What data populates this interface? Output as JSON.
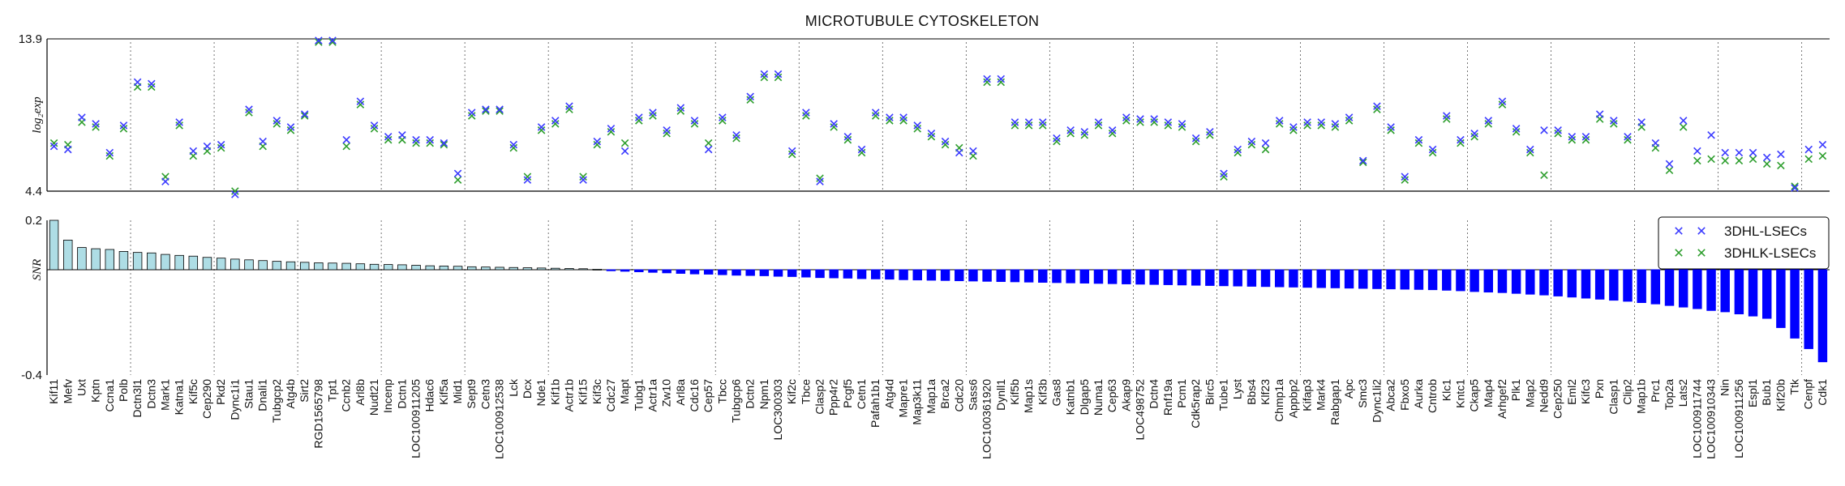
{
  "chart_data": {
    "title": "MICROTUBULE CYTOSKELETON",
    "top_panel": {
      "type": "scatter",
      "ylabel": "log₂exp",
      "ylim": [
        4.4,
        13.9
      ],
      "ytick_labels": [
        "13.9",
        "4.4"
      ],
      "grid": false
    },
    "bottom_panel": {
      "type": "bar",
      "ylabel": "SNR",
      "ylim": [
        -0.4,
        0.2
      ],
      "ytick_labels": [
        "0.2",
        "-0.4"
      ],
      "grid": false
    },
    "legend": {
      "placement": "top-right of bottom panel",
      "entries": [
        {
          "name": "3DHL-LSECs",
          "color": "#3b3bff",
          "marker": "x"
        },
        {
          "name": "3DHLK-LSECs",
          "color": "#2e9e2e",
          "marker": "x"
        }
      ]
    },
    "colors": {
      "positive_bar": "#aedde5",
      "negative_bar": "#0000ff",
      "bar_edge": "#000000",
      "hl_marker": "#3b3bff",
      "hlk_marker": "#2e9e2e"
    },
    "group_separator_every": 6,
    "categories": [
      "Kif11",
      "Mefv",
      "Uxt",
      "Kptn",
      "Ccna1",
      "Polb",
      "Dctn3l1",
      "Dctn3",
      "Mark1",
      "Katna1",
      "Kif5c",
      "Cep290",
      "Pkd2",
      "Dync1i1",
      "Stau1",
      "Dnali1",
      "Tubgcp2",
      "Atg4b",
      "Sirt2",
      "RGD1565798",
      "Tpt1",
      "Ccnb2",
      "Arl8b",
      "Nudt21",
      "Incenp",
      "Dctn1",
      "LOC100911205",
      "Hdac6",
      "Kif5a",
      "Mid1",
      "Sept9",
      "Cetn3",
      "LOC100912538",
      "Lck",
      "Dcx",
      "Nde1",
      "Kif1b",
      "Actr1b",
      "Kif15",
      "Kif3c",
      "Cdc27",
      "Mapt",
      "Tubg1",
      "Actr1a",
      "Zw10",
      "Arl8a",
      "Cdc16",
      "Cep57",
      "Tbcc",
      "Tubgcp6",
      "Dctn2",
      "Npm1",
      "LOC300303",
      "Kif2c",
      "Tbce",
      "Clasp2",
      "Ppp4r2",
      "Pcgf5",
      "Cetn1",
      "Pafah1b1",
      "Atg4d",
      "Mapre1",
      "Map3k11",
      "Map1a",
      "Brca2",
      "Cdc20",
      "Sass6",
      "LOC100361920",
      "Dynll1",
      "Kif5b",
      "Map1s",
      "Kif3b",
      "Gas8",
      "Katnb1",
      "Dlgap5",
      "Numa1",
      "Cep63",
      "Akap9",
      "LOC498752",
      "Dctn4",
      "Rnf19a",
      "Pcm1",
      "Cdk5rap2",
      "Birc5",
      "Tube1",
      "Lyst",
      "Bbs4",
      "Klf23",
      "Chmp1a",
      "Appbp2",
      "Kifap3",
      "Mark4",
      "Rabgap1",
      "Apc",
      "Smc3",
      "Dync1li2",
      "Abca2",
      "Fbxo5",
      "Aurka",
      "Cntrob",
      "Klc1",
      "Kntc1",
      "Ckap5",
      "Map4",
      "Arhgef2",
      "Plk1",
      "Map2",
      "Nedd9",
      "Cep250",
      "Eml2",
      "Kifc3",
      "Pxn",
      "Clasp1",
      "Clip2",
      "Map1b",
      "Prc1",
      "Top2a",
      "Lats2",
      "LOC100911744",
      "LOC100910343",
      "Nin",
      "LOC100911256",
      "Espl1",
      "Bub1",
      "Kif20b",
      "Ttk",
      "Cenpf",
      "Cdk1"
    ],
    "snr": [
      0.2,
      0.12,
      0.09,
      0.085,
      0.082,
      0.074,
      0.07,
      0.068,
      0.062,
      0.058,
      0.055,
      0.05,
      0.047,
      0.043,
      0.04,
      0.037,
      0.034,
      0.032,
      0.03,
      0.028,
      0.027,
      0.026,
      0.024,
      0.022,
      0.021,
      0.02,
      0.018,
      0.016,
      0.015,
      0.014,
      0.012,
      0.011,
      0.01,
      0.009,
      0.008,
      0.007,
      0.006,
      0.005,
      0.004,
      0.002,
      -0.004,
      -0.006,
      -0.008,
      -0.01,
      -0.012,
      -0.014,
      -0.016,
      -0.017,
      -0.019,
      -0.021,
      -0.022,
      -0.023,
      -0.025,
      -0.026,
      -0.028,
      -0.03,
      -0.031,
      -0.032,
      -0.034,
      -0.035,
      -0.036,
      -0.038,
      -0.039,
      -0.04,
      -0.041,
      -0.042,
      -0.043,
      -0.044,
      -0.045,
      -0.046,
      -0.047,
      -0.048,
      -0.049,
      -0.05,
      -0.051,
      -0.052,
      -0.053,
      -0.054,
      -0.055,
      -0.056,
      -0.057,
      -0.058,
      -0.059,
      -0.06,
      -0.061,
      -0.062,
      -0.063,
      -0.064,
      -0.065,
      -0.066,
      -0.067,
      -0.068,
      -0.069,
      -0.07,
      -0.071,
      -0.072,
      -0.073,
      -0.074,
      -0.075,
      -0.076,
      -0.078,
      -0.08,
      -0.083,
      -0.085,
      -0.087,
      -0.09,
      -0.093,
      -0.096,
      -0.1,
      -0.104,
      -0.108,
      -0.112,
      -0.116,
      -0.12,
      -0.125,
      -0.13,
      -0.136,
      -0.142,
      -0.148,
      -0.155,
      -0.16,
      -0.168,
      -0.176,
      -0.185,
      -0.22,
      -0.26,
      -0.3,
      -0.35
    ],
    "expr_3DHL_LSECs": [
      7.2,
      7.0,
      9.0,
      8.6,
      6.8,
      8.5,
      11.2,
      11.1,
      5.0,
      8.7,
      6.9,
      7.2,
      7.3,
      4.2,
      9.5,
      7.5,
      8.8,
      8.4,
      9.2,
      13.8,
      13.8,
      7.6,
      10.0,
      8.5,
      7.8,
      7.9,
      7.6,
      7.6,
      7.4,
      5.5,
      9.3,
      9.5,
      9.5,
      7.3,
      5.1,
      8.4,
      8.8,
      9.7,
      5.1,
      7.5,
      8.3,
      6.9,
      9.0,
      9.3,
      8.2,
      9.6,
      8.8,
      7.0,
      9.0,
      7.9,
      10.3,
      11.7,
      11.7,
      6.9,
      9.3,
      5.0,
      8.6,
      7.8,
      7.0,
      9.3,
      9.0,
      9.0,
      8.5,
      8.0,
      7.5,
      6.8,
      6.9,
      11.4,
      11.4,
      8.7,
      8.7,
      8.7,
      7.7,
      8.2,
      8.1,
      8.7,
      8.2,
      9.0,
      8.9,
      8.9,
      8.7,
      8.6,
      7.7,
      8.1,
      5.5,
      7.0,
      7.5,
      7.4,
      8.8,
      8.4,
      8.7,
      8.7,
      8.6,
      9.0,
      6.3,
      9.7,
      8.4,
      5.3,
      7.6,
      7.0,
      9.1,
      7.6,
      8.0,
      8.8,
      10.0,
      8.3,
      7.0,
      8.2,
      8.2,
      7.8,
      7.8,
      9.2,
      8.8,
      7.8,
      8.7,
      7.4,
      6.1,
      8.8,
      6.9,
      7.9,
      6.8,
      6.8,
      6.8,
      6.5,
      6.7,
      4.6,
      7.0,
      7.3
    ],
    "expr_3DHLK_LSECs": [
      7.4,
      7.3,
      8.7,
      8.4,
      6.6,
      8.3,
      10.9,
      10.9,
      5.3,
      8.5,
      6.6,
      6.9,
      7.1,
      4.4,
      9.3,
      7.2,
      8.6,
      8.2,
      9.1,
      13.7,
      13.7,
      7.2,
      9.8,
      8.3,
      7.6,
      7.6,
      7.4,
      7.4,
      7.3,
      5.1,
      9.1,
      9.4,
      9.4,
      7.1,
      5.3,
      8.2,
      8.6,
      9.5,
      5.3,
      7.3,
      8.1,
      7.4,
      8.8,
      9.1,
      8.0,
      9.4,
      8.6,
      7.4,
      8.8,
      7.7,
      10.1,
      11.5,
      11.5,
      6.7,
      9.1,
      5.2,
      8.4,
      7.6,
      6.8,
      9.1,
      8.8,
      8.8,
      8.3,
      7.8,
      7.3,
      7.1,
      6.6,
      11.2,
      11.2,
      8.5,
      8.5,
      8.5,
      7.5,
      8.0,
      7.9,
      8.5,
      8.0,
      8.8,
      8.7,
      8.7,
      8.5,
      8.4,
      7.5,
      7.9,
      5.3,
      6.8,
      7.3,
      7.0,
      8.6,
      8.2,
      8.5,
      8.5,
      8.4,
      8.8,
      6.2,
      9.5,
      8.2,
      5.1,
      7.4,
      6.8,
      8.9,
      7.4,
      7.8,
      8.6,
      9.8,
      8.1,
      6.8,
      5.4,
      8.0,
      7.6,
      7.6,
      8.9,
      8.6,
      7.6,
      8.4,
      7.1,
      5.7,
      8.4,
      6.3,
      6.4,
      6.3,
      6.3,
      6.4,
      6.1,
      6.0,
      4.7,
      6.4,
      6.6
    ]
  }
}
